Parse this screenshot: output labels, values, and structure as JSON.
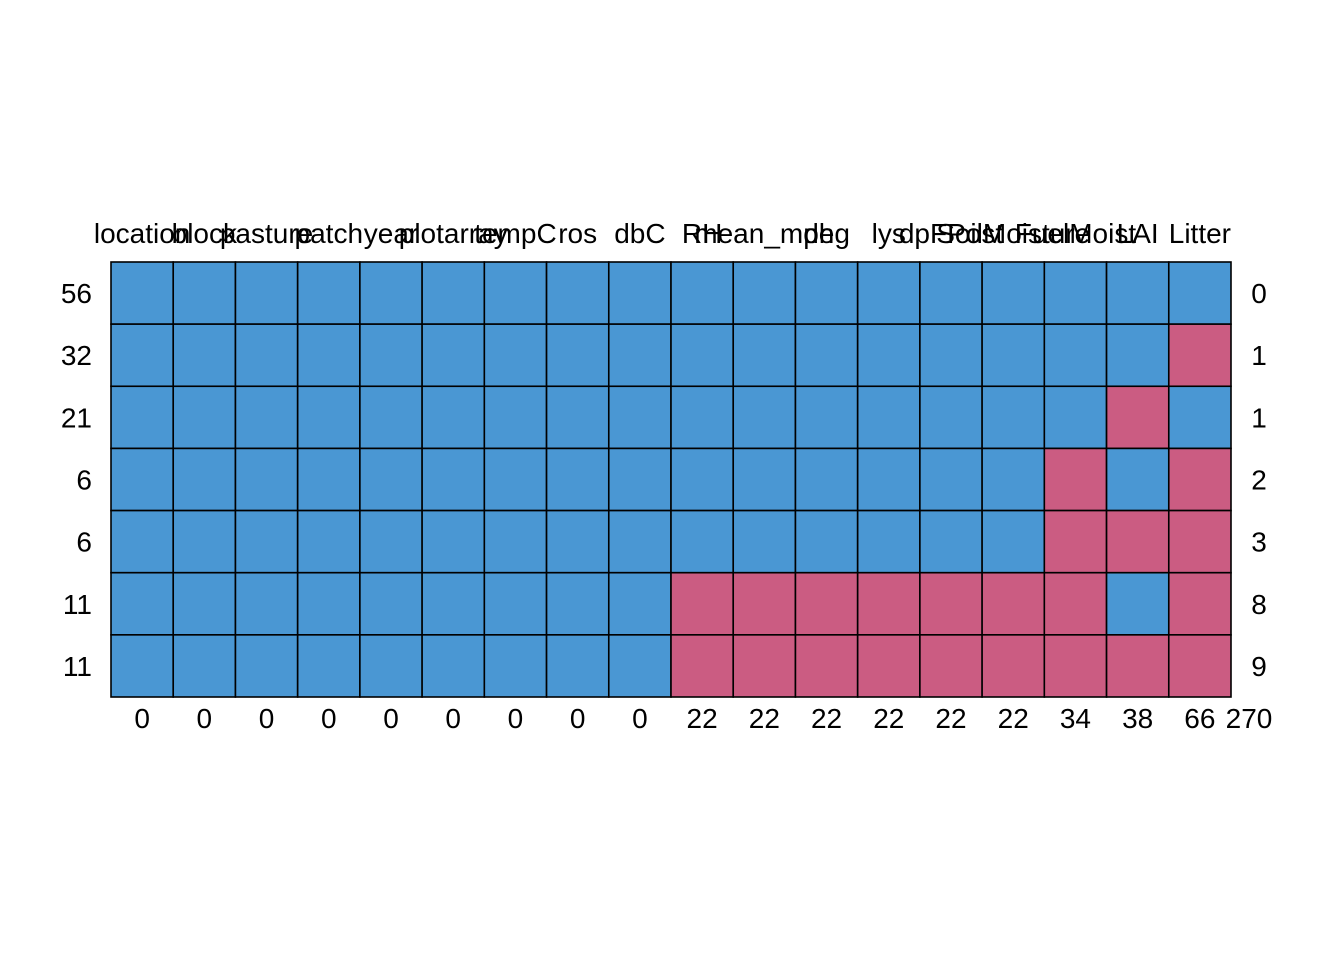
{
  "chart_data": {
    "type": "heatmap",
    "title": "",
    "columns": [
      "location",
      "block",
      "pasture",
      "patch",
      "year",
      "plotarray",
      "tempC",
      "ros",
      "dbC",
      "RH",
      "mean_mph",
      "deg",
      "lys",
      "dpFPost",
      "SoilMoisture",
      "FuelMoist",
      "LAI",
      "Litter"
    ],
    "column_labels": [
      "location",
      "block",
      "pasture",
      "patch",
      "year",
      "plotarray",
      "tempC",
      "ros",
      "dbC",
      "RH",
      "mean_mph",
      "deg",
      "lys",
      "dpFPost",
      "SoilMoisture",
      "FuelMoist",
      "LAI",
      "Litter"
    ],
    "row_counts": [
      "56",
      "32",
      "21",
      "6",
      "6",
      "11",
      "11"
    ],
    "row_missing_totals": [
      "0",
      "1",
      "1",
      "2",
      "3",
      "8",
      "9"
    ],
    "column_missing_totals": [
      "0",
      "0",
      "0",
      "0",
      "0",
      "0",
      "0",
      "0",
      "0",
      "22",
      "22",
      "22",
      "22",
      "22",
      "22",
      "34",
      "38",
      "66"
    ],
    "total_missing": "270",
    "pattern": [
      [
        1,
        1,
        1,
        1,
        1,
        1,
        1,
        1,
        1,
        1,
        1,
        1,
        1,
        1,
        1,
        1,
        1,
        1
      ],
      [
        1,
        1,
        1,
        1,
        1,
        1,
        1,
        1,
        1,
        1,
        1,
        1,
        1,
        1,
        1,
        1,
        1,
        0
      ],
      [
        1,
        1,
        1,
        1,
        1,
        1,
        1,
        1,
        1,
        1,
        1,
        1,
        1,
        1,
        1,
        1,
        0,
        1
      ],
      [
        1,
        1,
        1,
        1,
        1,
        1,
        1,
        1,
        1,
        1,
        1,
        1,
        1,
        1,
        1,
        0,
        1,
        0
      ],
      [
        1,
        1,
        1,
        1,
        1,
        1,
        1,
        1,
        1,
        1,
        1,
        1,
        1,
        1,
        1,
        0,
        0,
        0
      ],
      [
        1,
        1,
        1,
        1,
        1,
        1,
        1,
        1,
        1,
        0,
        0,
        0,
        0,
        0,
        0,
        0,
        1,
        0
      ],
      [
        1,
        1,
        1,
        1,
        1,
        1,
        1,
        1,
        1,
        0,
        0,
        0,
        0,
        0,
        0,
        0,
        0,
        0
      ]
    ],
    "colors": {
      "observed": "#4A97D3",
      "missing": "#CB5C82",
      "border": "#000000"
    }
  }
}
